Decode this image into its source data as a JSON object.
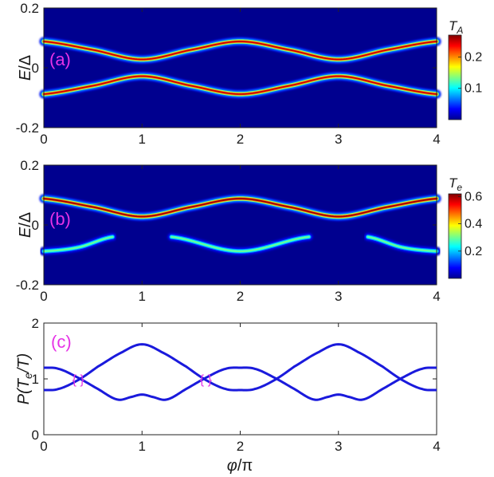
{
  "chart_data": [
    {
      "type": "heatmap",
      "panel_label": "(a)",
      "ylabel_main": "E",
      "ylabel_sep": "/Δ",
      "xlim": [
        0,
        4
      ],
      "ylim": [
        -0.2,
        0.2
      ],
      "xticks": [
        0,
        1,
        2,
        3,
        4
      ],
      "yticks": [
        -0.2,
        0,
        0.2
      ],
      "ytick_labels": [
        "-0.2",
        "0",
        "0.2"
      ],
      "colorbar": {
        "title_main": "T",
        "title_sub": "A",
        "ticks": [
          0.1,
          0.2
        ],
        "range": [
          0,
          0.27
        ]
      },
      "background": "#00008f",
      "bands": [
        {
          "name": "upper",
          "points": [
            [
              0,
              0.088
            ],
            [
              0.5,
              0.06
            ],
            [
              1,
              0.028
            ],
            [
              1.5,
              0.06
            ],
            [
              2,
              0.088
            ],
            [
              2.5,
              0.06
            ],
            [
              3,
              0.028
            ],
            [
              3.5,
              0.06
            ],
            [
              4,
              0.088
            ]
          ],
          "peak": 0.25
        },
        {
          "name": "lower",
          "points": [
            [
              0,
              -0.088
            ],
            [
              0.5,
              -0.06
            ],
            [
              1,
              -0.028
            ],
            [
              1.5,
              -0.06
            ],
            [
              2,
              -0.088
            ],
            [
              2.5,
              -0.06
            ],
            [
              3,
              -0.028
            ],
            [
              3.5,
              -0.06
            ],
            [
              4,
              -0.088
            ]
          ],
          "peak": 0.25
        }
      ]
    },
    {
      "type": "heatmap",
      "panel_label": "(b)",
      "ylabel_main": "E",
      "ylabel_sep": "/Δ",
      "xlim": [
        0,
        4
      ],
      "ylim": [
        -0.2,
        0.2
      ],
      "xticks": [
        0,
        1,
        2,
        3,
        4
      ],
      "yticks": [
        -0.2,
        0,
        0.2
      ],
      "ytick_labels": [
        "-0.2",
        "0",
        "0.2"
      ],
      "colorbar": {
        "title_main": "T",
        "title_sub": "e",
        "ticks": [
          0.2,
          0.4,
          0.6
        ],
        "range": [
          0,
          0.62
        ]
      },
      "background": "#00008f",
      "bands": [
        {
          "name": "upper",
          "points": [
            [
              0,
              0.088
            ],
            [
              0.5,
              0.06
            ],
            [
              1,
              0.028
            ],
            [
              1.5,
              0.06
            ],
            [
              2,
              0.088
            ],
            [
              2.5,
              0.06
            ],
            [
              3,
              0.028
            ],
            [
              3.5,
              0.06
            ],
            [
              4,
              0.088
            ]
          ],
          "peak": 0.6
        },
        {
          "name": "lower-left",
          "points": [
            [
              0,
              -0.088
            ],
            [
              0.35,
              -0.075
            ],
            [
              0.7,
              -0.04
            ]
          ],
          "peak": 0.3
        },
        {
          "name": "lower-mid",
          "points": [
            [
              1.3,
              -0.04
            ],
            [
              2,
              -0.088
            ],
            [
              2.7,
              -0.04
            ]
          ],
          "peak": 0.3
        },
        {
          "name": "lower-right",
          "points": [
            [
              3.3,
              -0.04
            ],
            [
              3.65,
              -0.075
            ],
            [
              4,
              -0.088
            ]
          ],
          "peak": 0.3
        }
      ]
    },
    {
      "type": "line",
      "panel_label": "(c)",
      "ylabel": "P(T_e/T)",
      "ylabel_prefix": "P(",
      "ylabel_t": "T",
      "ylabel_sub": "e",
      "ylabel_suffix": "/T)",
      "xlabel_main": "φ",
      "xlabel_sep": "/π",
      "xlim": [
        0,
        4
      ],
      "ylim": [
        0,
        2
      ],
      "xticks": [
        0,
        1,
        2,
        3,
        4
      ],
      "yticks": [
        0,
        1,
        2
      ],
      "series": [
        {
          "values_x": [
            0,
            0.15,
            0.35,
            0.55,
            0.8,
            1,
            1.2,
            1.45,
            1.65,
            1.85,
            2,
            2.15,
            2.35,
            2.55,
            2.8,
            3,
            3.2,
            3.45,
            3.65,
            3.85,
            4
          ],
          "values_y": [
            0.8,
            0.82,
            0.98,
            1.22,
            1.48,
            1.62,
            1.48,
            1.22,
            0.98,
            0.82,
            0.8,
            0.82,
            0.98,
            1.22,
            1.48,
            1.62,
            1.48,
            1.22,
            0.98,
            0.82,
            0.8
          ]
        },
        {
          "values_x": [
            0,
            0.15,
            0.35,
            0.55,
            0.75,
            0.9,
            1,
            1.1,
            1.25,
            1.45,
            1.65,
            1.85,
            2,
            2.15,
            2.35,
            2.55,
            2.75,
            2.9,
            3,
            3.1,
            3.25,
            3.45,
            3.65,
            3.85,
            4
          ],
          "values_y": [
            1.2,
            1.18,
            1.02,
            0.82,
            0.63,
            0.68,
            0.72,
            0.68,
            0.63,
            0.82,
            1.02,
            1.18,
            1.2,
            1.18,
            1.02,
            0.82,
            0.63,
            0.68,
            0.72,
            0.68,
            0.63,
            0.82,
            1.02,
            1.18,
            1.2
          ]
        }
      ],
      "annotations": [
        {
          "x": 0.35,
          "y": 1.0,
          "text": "{ }"
        },
        {
          "x": 1.65,
          "y": 1.0,
          "text": "{ }"
        }
      ]
    }
  ]
}
